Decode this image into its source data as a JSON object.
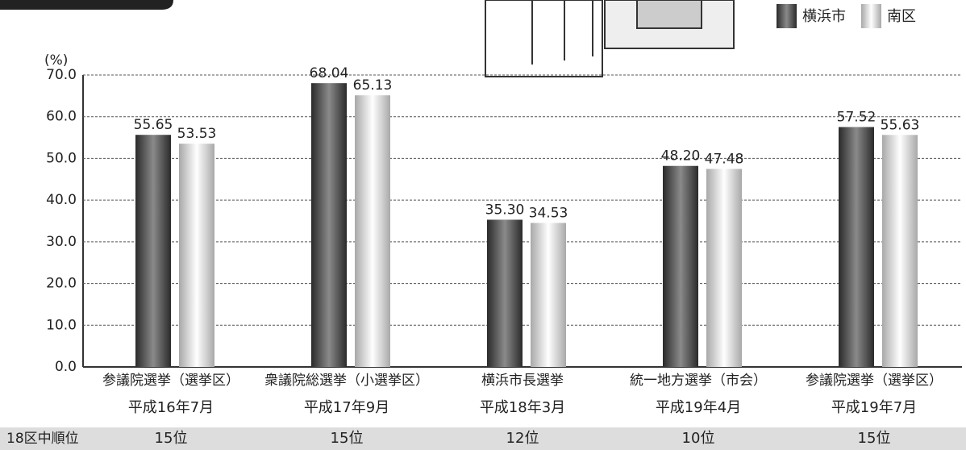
{
  "chart_data": {
    "type": "bar",
    "y_unit": "(%)",
    "categories": [
      "参議院選挙（選挙区）",
      "衆議院総選挙（小選挙区）",
      "横浜市長選挙",
      "統一地方選挙（市会）",
      "参議院選挙（選挙区）"
    ],
    "periods": [
      "平成16年7月",
      "平成17年9月",
      "平成18年3月",
      "平成19年4月",
      "平成19年7月"
    ],
    "rank_label": "18区中順位",
    "ranks": [
      "15位",
      "15位",
      "12位",
      "10位",
      "15位"
    ],
    "series": [
      {
        "name": "横浜市",
        "color": "#555555",
        "values": [
          55.65,
          68.04,
          35.3,
          48.2,
          57.52
        ],
        "value_labels": [
          "55.65",
          "68.04",
          "35.30",
          "48.20",
          "57.52"
        ]
      },
      {
        "name": "南区",
        "color": "#d0d0d0",
        "values": [
          53.53,
          65.13,
          34.53,
          47.48,
          55.63
        ],
        "value_labels": [
          "53.53",
          "65.13",
          "34.53",
          "47.48",
          "55.63"
        ]
      }
    ],
    "ylim": [
      0,
      70
    ],
    "yticks": [
      {
        "value": 0,
        "label": "0.0"
      },
      {
        "value": 10,
        "label": "10.0"
      },
      {
        "value": 20,
        "label": "20.0"
      },
      {
        "value": 30,
        "label": "30.0"
      },
      {
        "value": 40,
        "label": "40.0"
      },
      {
        "value": 50,
        "label": "50.0"
      },
      {
        "value": 60,
        "label": "60.0"
      },
      {
        "value": 70,
        "label": "70.0"
      }
    ],
    "grid": true
  }
}
